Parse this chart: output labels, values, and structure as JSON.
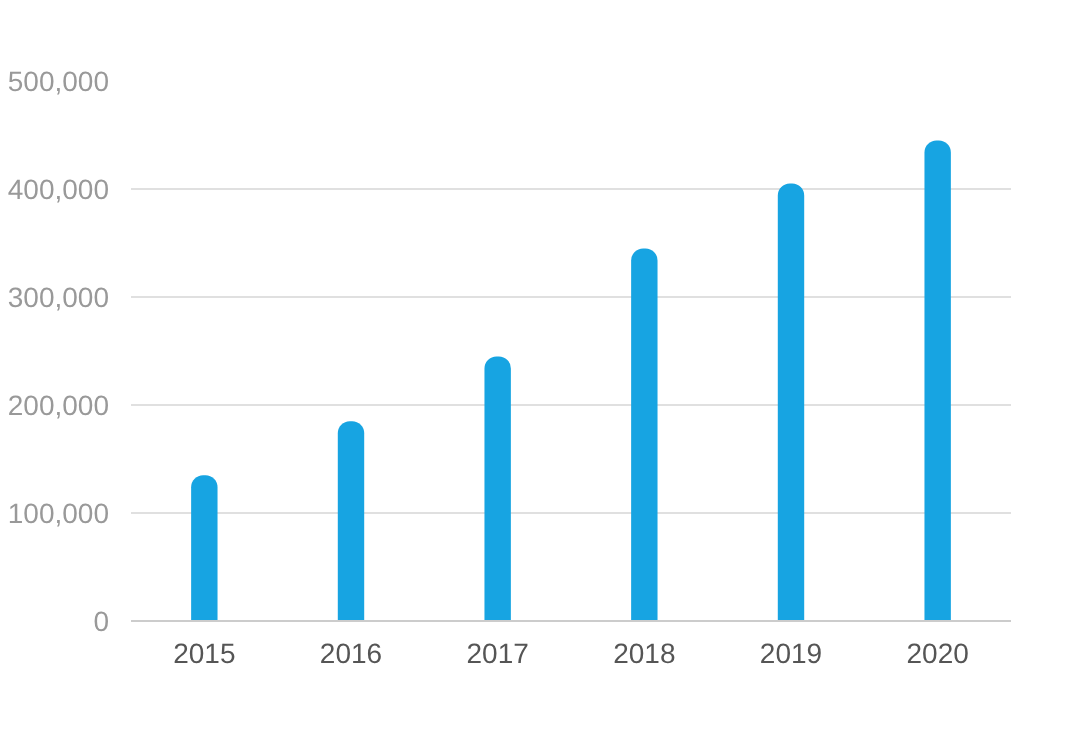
{
  "chart_data": {
    "type": "bar",
    "categories": [
      "2015",
      "2016",
      "2017",
      "2018",
      "2019",
      "2020"
    ],
    "values": [
      135000,
      185000,
      245000,
      345000,
      405000,
      445000
    ],
    "color": "#17a4e2",
    "ylim": [
      0,
      500000
    ],
    "yticks": [
      {
        "value": 0,
        "label": "0"
      },
      {
        "value": 100000,
        "label": "100,000"
      },
      {
        "value": 200000,
        "label": "200,000"
      },
      {
        "value": 300000,
        "label": "300,000"
      },
      {
        "value": 400000,
        "label": "400,000"
      },
      {
        "value": 500000,
        "label": "500,000"
      }
    ],
    "grid": "y"
  }
}
